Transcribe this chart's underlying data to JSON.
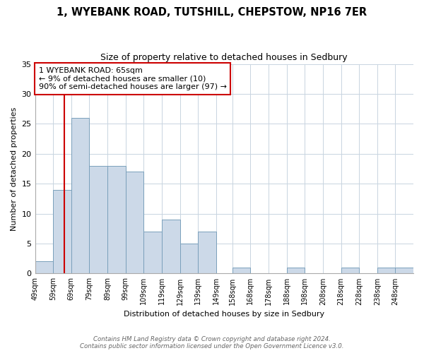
{
  "title": "1, WYEBANK ROAD, TUTSHILL, CHEPSTOW, NP16 7ER",
  "subtitle": "Size of property relative to detached houses in Sedbury",
  "xlabel": "Distribution of detached houses by size in Sedbury",
  "ylabel": "Number of detached properties",
  "bar_color": "#ccd9e8",
  "bar_edge_color": "#7aa0bb",
  "bin_labels": [
    "49sqm",
    "59sqm",
    "69sqm",
    "79sqm",
    "89sqm",
    "99sqm",
    "109sqm",
    "119sqm",
    "129sqm",
    "139sqm",
    "149sqm",
    "158sqm",
    "168sqm",
    "178sqm",
    "188sqm",
    "198sqm",
    "208sqm",
    "218sqm",
    "228sqm",
    "238sqm",
    "248sqm"
  ],
  "bin_starts": [
    49,
    59,
    69,
    79,
    89,
    99,
    109,
    119,
    129,
    139,
    149,
    158,
    168,
    178,
    188,
    198,
    208,
    218,
    228,
    238,
    248
  ],
  "values": [
    2,
    14,
    26,
    18,
    18,
    17,
    7,
    9,
    5,
    7,
    0,
    1,
    0,
    0,
    1,
    0,
    0,
    1,
    0,
    1,
    1
  ],
  "bin_width": 10,
  "ylim": [
    0,
    35
  ],
  "xlim": [
    49,
    258
  ],
  "yticks": [
    0,
    5,
    10,
    15,
    20,
    25,
    30,
    35
  ],
  "property_line_x": 65,
  "annotation_line1": "1 WYEBANK ROAD: 65sqm",
  "annotation_line2": "← 9% of detached houses are smaller (10)",
  "annotation_line3": "90% of semi-detached houses are larger (97) →",
  "footnote1": "Contains HM Land Registry data © Crown copyright and database right 2024.",
  "footnote2": "Contains public sector information licensed under the Open Government Licence v3.0.",
  "line_color": "#cc0000",
  "annotation_box_color": "#cc0000",
  "background_color": "#ffffff",
  "grid_color": "#c8d4e0"
}
